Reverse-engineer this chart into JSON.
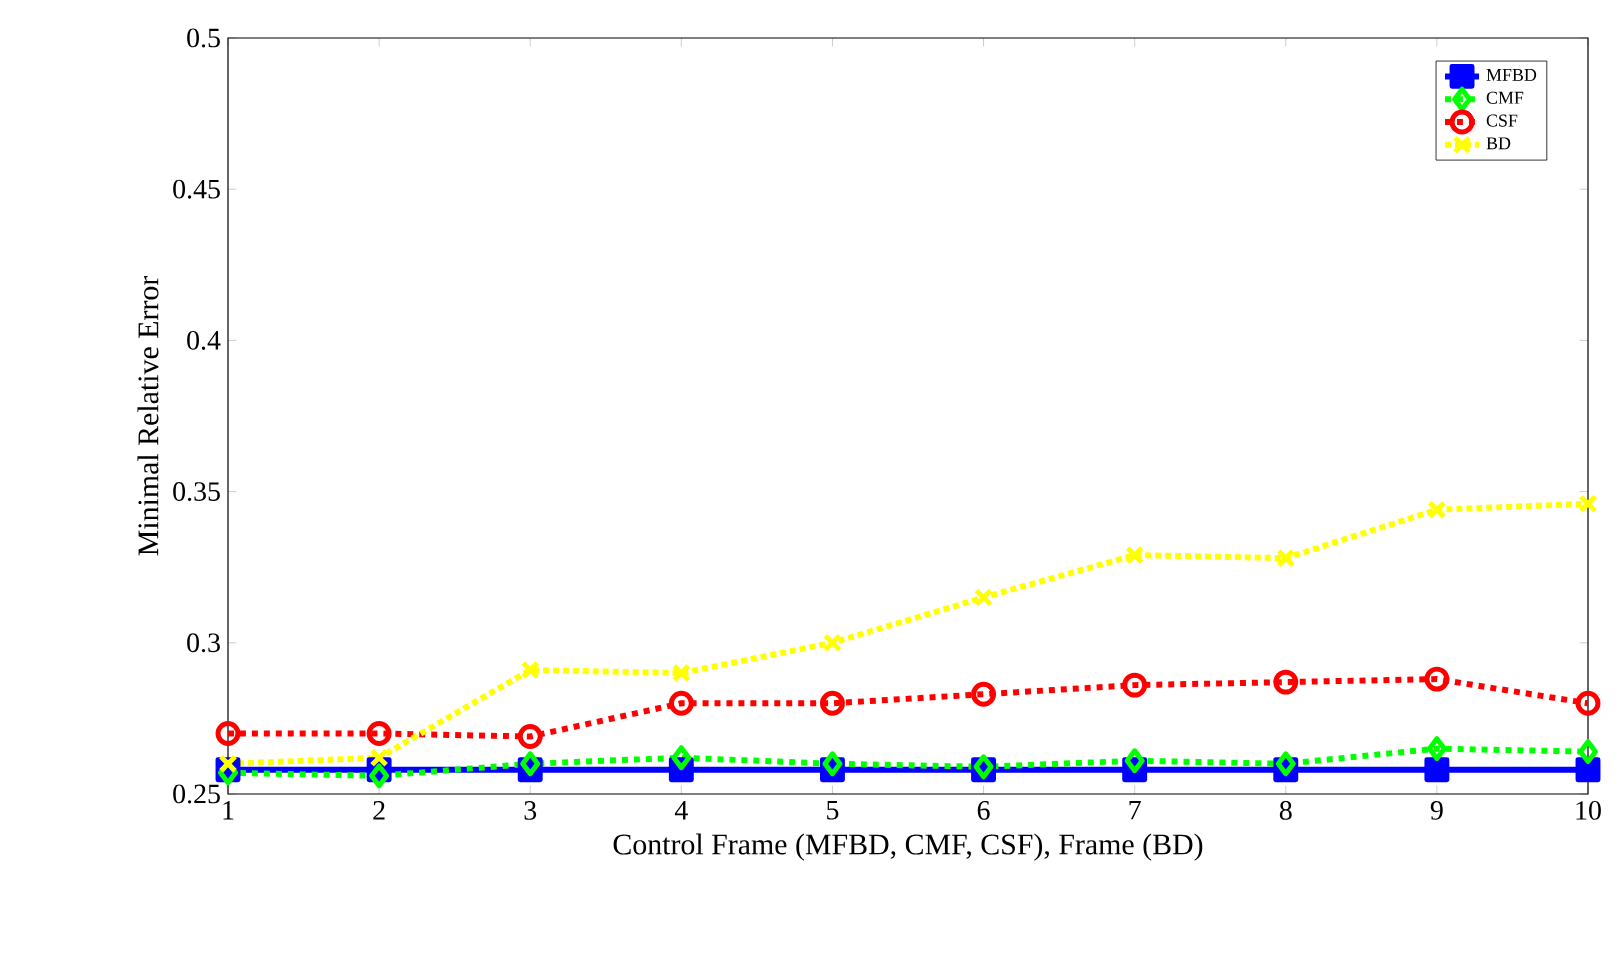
{
  "chart_data": {
    "type": "line",
    "xlabel": "Control Frame (MFBD,  CMF,  CSF),  Frame (BD)",
    "ylabel": "Minimal Relative Error",
    "x": [
      1,
      2,
      3,
      4,
      5,
      6,
      7,
      8,
      9,
      10
    ],
    "series": [
      {
        "name": "MFBD",
        "color": "#0000ff",
        "marker": "square",
        "line_style": "solid",
        "values": [
          0.258,
          0.258,
          0.258,
          0.258,
          0.258,
          0.258,
          0.258,
          0.258,
          0.258,
          0.258
        ]
      },
      {
        "name": "CMF",
        "color": "#00ff00",
        "marker": "diamond",
        "line_style": "dashed",
        "values": [
          0.257,
          0.256,
          0.26,
          0.262,
          0.26,
          0.259,
          0.261,
          0.26,
          0.265,
          0.264
        ]
      },
      {
        "name": "CSF",
        "color": "#ff0000",
        "marker": "circle",
        "line_style": "dashed",
        "values": [
          0.27,
          0.27,
          0.269,
          0.28,
          0.28,
          0.283,
          0.286,
          0.287,
          0.288,
          0.28
        ]
      },
      {
        "name": "BD",
        "color": "#ffff00",
        "marker": "cross",
        "line_style": "dotted",
        "values": [
          0.26,
          0.262,
          0.291,
          0.29,
          0.3,
          0.315,
          0.329,
          0.328,
          0.344,
          0.346
        ]
      }
    ],
    "xlim": [
      1,
      10
    ],
    "ylim": [
      0.25,
      0.5
    ],
    "xticks": [
      1,
      2,
      3,
      4,
      5,
      6,
      7,
      8,
      9,
      10
    ],
    "yticks": [
      0.25,
      0.3,
      0.35,
      0.4,
      0.45,
      0.5
    ],
    "grid": false,
    "legend": "top right"
  }
}
